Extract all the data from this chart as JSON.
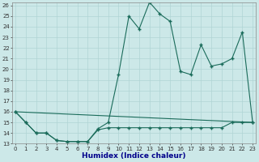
{
  "title": "",
  "xlabel": "Humidex (Indice chaleur)",
  "bg_color": "#cce8e8",
  "line_color": "#1a6b5a",
  "grid_color": "#b0d4d4",
  "x_min": 0,
  "x_max": 23,
  "y_min": 13,
  "y_max": 26,
  "line1_x": [
    0,
    1,
    2,
    3,
    4,
    5,
    6,
    7,
    8,
    9,
    10,
    11,
    12,
    13,
    14,
    15,
    16,
    17,
    18,
    19,
    20,
    21,
    22,
    23
  ],
  "line1_y": [
    16.0,
    15.0,
    14.0,
    14.0,
    13.3,
    13.2,
    13.2,
    13.2,
    14.4,
    15.0,
    19.5,
    25.0,
    23.8,
    26.3,
    25.2,
    24.5,
    19.8,
    19.5,
    22.3,
    20.3,
    20.5,
    21.0,
    23.5,
    15.0
  ],
  "line2_x": [
    0,
    1,
    2,
    3,
    4,
    5,
    6,
    7,
    8,
    9,
    10,
    11,
    12,
    13,
    14,
    15,
    16,
    17,
    18,
    19,
    20,
    21,
    22,
    23
  ],
  "line2_y": [
    16.0,
    15.0,
    14.0,
    14.0,
    13.3,
    13.2,
    13.2,
    13.2,
    14.3,
    14.5,
    14.5,
    14.5,
    14.5,
    14.5,
    14.5,
    14.5,
    14.5,
    14.5,
    14.5,
    14.5,
    14.5,
    15.0,
    15.0,
    15.0
  ],
  "line3_x": [
    0,
    23
  ],
  "line3_y": [
    16.0,
    15.0
  ],
  "xlabel_color": "#00008b",
  "tick_fontsize": 5,
  "xlabel_fontsize": 6.5
}
